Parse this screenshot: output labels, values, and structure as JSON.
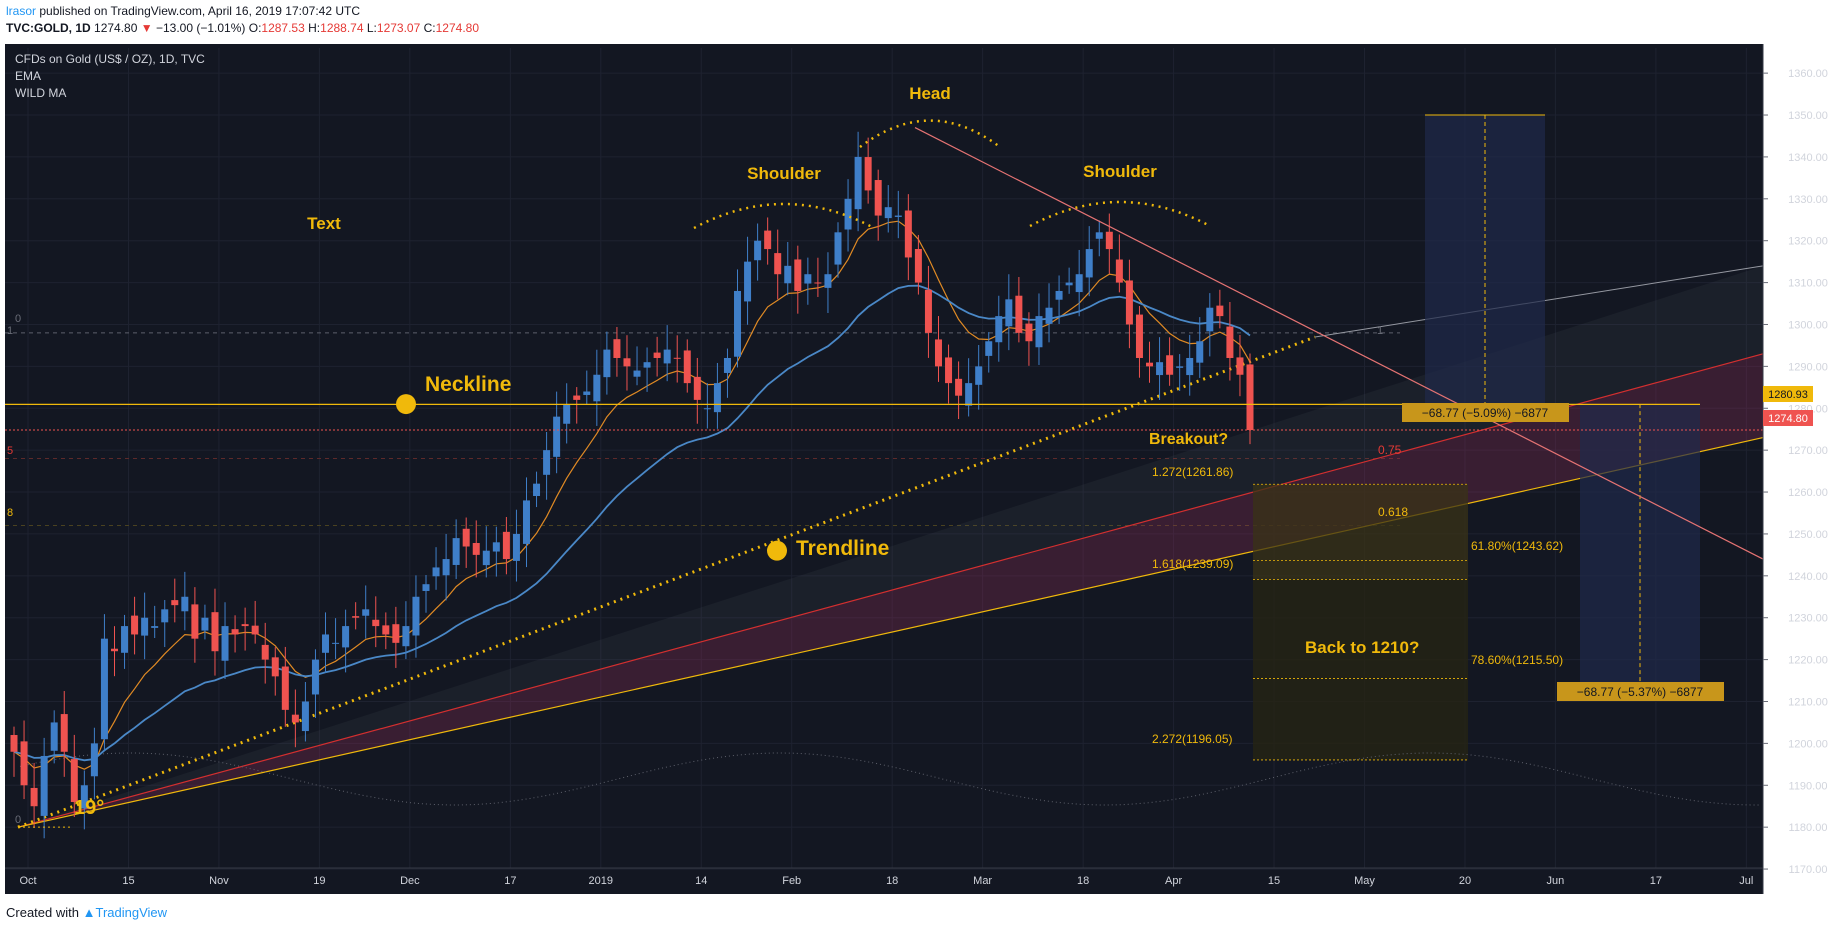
{
  "header": {
    "author": "lrasor",
    "published_text": " published on TradingView.com, April 16, 2019 17:07:42 UTC",
    "symbol": "TVC:GOLD, 1D",
    "last": "1274.80",
    "change_arrow": "▼",
    "change": "−13.00 (−1.01%)",
    "o_label": "O:",
    "o_value": "1287.53",
    "h_label": "H:",
    "h_value": "1288.74",
    "l_label": "L:",
    "l_value": "1273.07",
    "c_label": "C:",
    "c_value": "1274.80"
  },
  "legend": {
    "title": "CFDs on Gold (US$ / OZ), 1D, TVC",
    "indicator1": "EMA",
    "indicator2": "WILD MA"
  },
  "footer": {
    "created_with": "Created with",
    "brand": "TradingView"
  },
  "colors": {
    "background": "#131722",
    "up": "#3f7fc9",
    "down": "#ef5350",
    "accent": "#f0b90b",
    "ema": "#e08a24",
    "wild_ma": "#4a88c7",
    "last_price": "#ef5350",
    "neckline": "#f0b90b"
  },
  "chart_data": {
    "type": "candlestick",
    "title": "CFDs on Gold (US$ / OZ), 1D, TVC",
    "ylim": [
      1165,
      1366
    ],
    "y_ticks": [
      "1170.00",
      "1180.00",
      "1190.00",
      "1200.00",
      "1210.00",
      "1220.00",
      "1230.00",
      "1240.00",
      "1250.00",
      "1260.00",
      "1270.00",
      "1280.00",
      "1290.00",
      "1300.00",
      "1310.00",
      "1320.00",
      "1330.00",
      "1340.00",
      "1350.00",
      "1360.00"
    ],
    "x_ticks": [
      "Oct",
      "15",
      "Nov",
      "19",
      "Dec",
      "17",
      "2019",
      "14",
      "Feb",
      "18",
      "Mar",
      "18",
      "Apr",
      "15",
      "May",
      "20",
      "Jun",
      "17",
      "Jul"
    ],
    "series_close_approx": [
      1198,
      1190,
      1185,
      1197,
      1205,
      1198,
      1186,
      1190,
      1200,
      1225,
      1222,
      1228,
      1226,
      1230,
      1228,
      1232,
      1233,
      1235,
      1225,
      1230,
      1222,
      1228,
      1226,
      1228,
      1226,
      1220,
      1216,
      1208,
      1205,
      1210,
      1220,
      1226,
      1224,
      1228,
      1230,
      1232,
      1228,
      1226,
      1224,
      1228,
      1235,
      1238,
      1242,
      1244,
      1249,
      1247,
      1245,
      1246,
      1248,
      1244,
      1250,
      1258,
      1262,
      1270,
      1278,
      1281,
      1282,
      1284,
      1288,
      1294,
      1292,
      1290,
      1289,
      1291,
      1292,
      1294,
      1292,
      1286,
      1282,
      1280,
      1286,
      1292,
      1308,
      1315,
      1320,
      1318,
      1312,
      1314,
      1308,
      1312,
      1310,
      1312,
      1322,
      1330,
      1340,
      1332,
      1326,
      1328,
      1326,
      1316,
      1310,
      1298,
      1290,
      1286,
      1283,
      1286,
      1290,
      1296,
      1302,
      1306,
      1298,
      1296,
      1302,
      1304,
      1308,
      1310,
      1312,
      1318,
      1322,
      1318,
      1310,
      1300,
      1292,
      1290,
      1291,
      1288,
      1290,
      1292,
      1296,
      1304,
      1302,
      1292,
      1288,
      1274.8
    ],
    "last_price": "1274.80",
    "neckline_price": "1280.93",
    "annotations": {
      "head": "Head",
      "shoulder_left": "Shoulder",
      "shoulder_right": "Shoulder",
      "text": "Text",
      "neckline": "Neckline",
      "trendline": "Trendline",
      "breakout": "Breakout?",
      "back_to": "Back to 1210?",
      "angle": "19°",
      "fib_075": "0.75",
      "fib_0618": "0.618",
      "ext_1272": "1.272(1261.86)",
      "ext_1618": "1.618(1239.09)",
      "ext_2272": "2.272(1196.05)",
      "fib_618": "61.80%(1243.62)",
      "fib_786": "78.60%(1215.50)",
      "measure1": "−68.77 (−5.09%) −6877",
      "measure2": "−68.77 (−5.37%) −6877",
      "left_0": "0",
      "left_1": "1",
      "left_5": "5",
      "left_8": "8",
      "left_0b": "0",
      "right_1": "1"
    }
  }
}
